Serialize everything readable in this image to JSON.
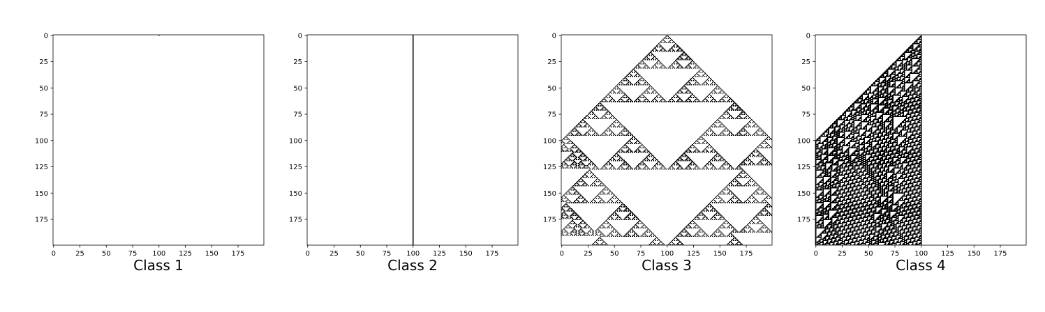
{
  "chart_data": [
    {
      "type": "heatmap",
      "xlabel": "Class 1",
      "rule": 0,
      "xlim": [
        0,
        199
      ],
      "ylim": [
        199,
        0
      ],
      "xticks": [
        "0",
        "25",
        "50",
        "75",
        "100",
        "125",
        "150",
        "175"
      ],
      "yticks": [
        "0",
        "25",
        "50",
        "75",
        "100",
        "125",
        "150",
        "175"
      ],
      "colors": {
        "on": "#000000",
        "off": "#ffffff"
      }
    },
    {
      "type": "heatmap",
      "xlabel": "Class 2",
      "rule": 4,
      "xlim": [
        0,
        199
      ],
      "ylim": [
        199,
        0
      ],
      "xticks": [
        "0",
        "25",
        "50",
        "75",
        "100",
        "125",
        "150",
        "175"
      ],
      "yticks": [
        "0",
        "25",
        "50",
        "75",
        "100",
        "125",
        "150",
        "175"
      ],
      "colors": {
        "on": "#000000",
        "off": "#ffffff"
      }
    },
    {
      "type": "heatmap",
      "xlabel": "Class 3",
      "rule": 90,
      "xlim": [
        0,
        199
      ],
      "ylim": [
        199,
        0
      ],
      "xticks": [
        "0",
        "25",
        "50",
        "75",
        "100",
        "125",
        "150",
        "175"
      ],
      "yticks": [
        "0",
        "25",
        "50",
        "75",
        "100",
        "125",
        "150",
        "175"
      ],
      "colors": {
        "on": "#000000",
        "off": "#ffffff"
      }
    },
    {
      "type": "heatmap",
      "xlabel": "Class 4",
      "rule": 110,
      "xlim": [
        0,
        199
      ],
      "ylim": [
        199,
        0
      ],
      "xticks": [
        "0",
        "25",
        "50",
        "75",
        "100",
        "125",
        "150",
        "175"
      ],
      "yticks": [
        "0",
        "25",
        "50",
        "75",
        "100",
        "125",
        "150",
        "175"
      ],
      "colors": {
        "on": "#000000",
        "off": "#ffffff"
      }
    }
  ]
}
